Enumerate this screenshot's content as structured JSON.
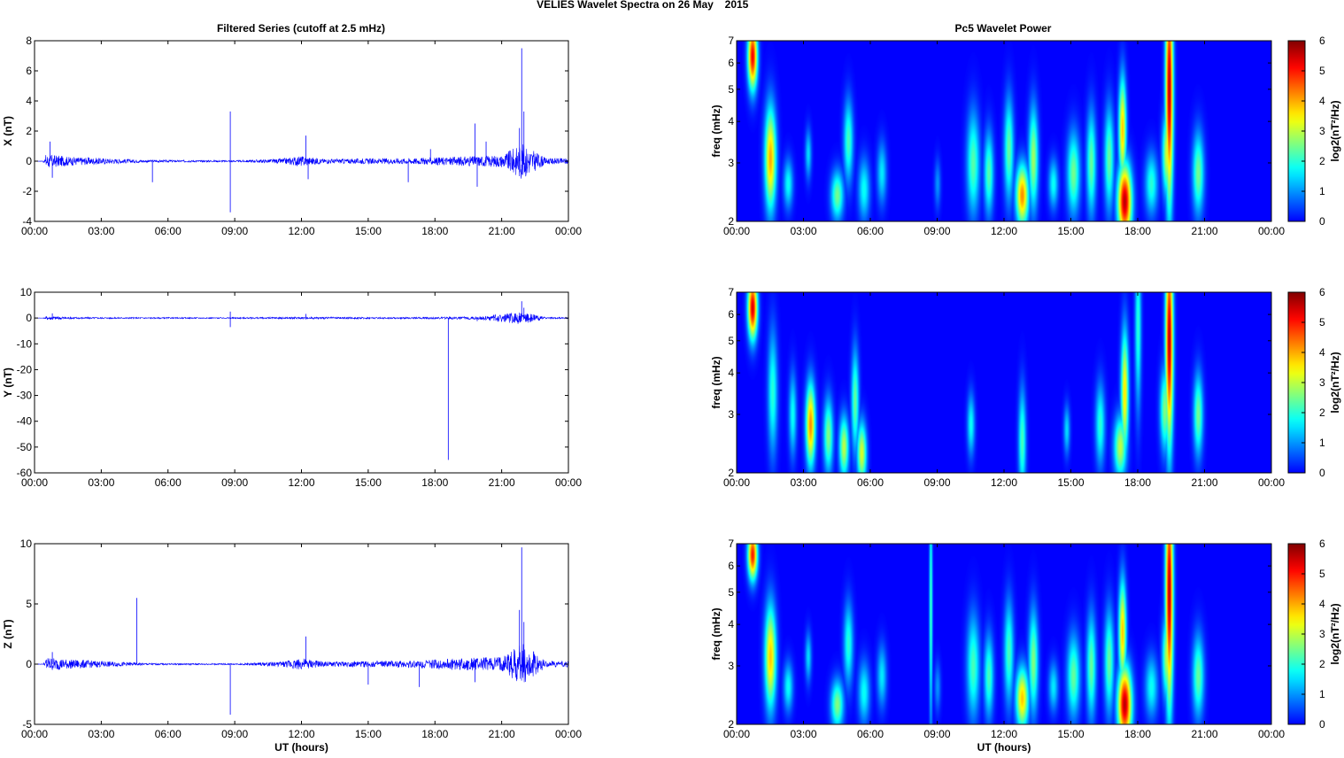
{
  "figure": {
    "title": "VELIES Wavelet Spectra on 26 May",
    "title_year": "2015",
    "left_title": "Filtered Series (cutoff at 2.5 mHz)",
    "right_title": "Pc5 Wavelet Power"
  },
  "chart_data": [
    {
      "type": "line",
      "panel": "X",
      "ylabel": "X (nT)",
      "xlabel": "",
      "ylim": [
        -4,
        8
      ],
      "yticks": [
        "8",
        "6",
        "4",
        "2",
        "0",
        "-2",
        "-4"
      ],
      "xticks": [
        "00:00",
        "03:00",
        "06:00",
        "09:00",
        "12:00",
        "15:00",
        "18:00",
        "21:00",
        "00:00"
      ],
      "xlim_hours": [
        0,
        24
      ],
      "series_color": "#0000ff",
      "baseline_noise": [
        [
          0.5,
          0.5
        ],
        [
          1.5,
          0.3
        ],
        [
          5,
          0.08
        ],
        [
          9,
          0.05
        ],
        [
          11,
          0.15
        ],
        [
          12,
          0.35
        ],
        [
          13,
          0.15
        ],
        [
          17,
          0.2
        ],
        [
          19,
          0.3
        ],
        [
          21,
          0.4
        ],
        [
          21.9,
          1.2
        ],
        [
          23,
          0.2
        ]
      ],
      "spikes": [
        [
          0.7,
          1.3
        ],
        [
          0.8,
          -1.1
        ],
        [
          5.3,
          -1.4
        ],
        [
          8.8,
          3.3
        ],
        [
          8.8,
          -3.4
        ],
        [
          12.2,
          1.7
        ],
        [
          12.3,
          -1.2
        ],
        [
          16.8,
          -1.4
        ],
        [
          17.8,
          0.8
        ],
        [
          19.8,
          2.5
        ],
        [
          19.9,
          -1.7
        ],
        [
          20.3,
          1.3
        ],
        [
          21.8,
          2.2
        ],
        [
          21.9,
          7.5
        ],
        [
          22.0,
          3.3
        ]
      ]
    },
    {
      "type": "line",
      "panel": "Y",
      "ylabel": "Y (nT)",
      "xlabel": "",
      "ylim": [
        -60,
        10
      ],
      "yticks": [
        "10",
        "0",
        "-10",
        "-20",
        "-30",
        "-40",
        "-50",
        "-60"
      ],
      "xticks": [
        "00:00",
        "03:00",
        "06:00",
        "09:00",
        "12:00",
        "15:00",
        "18:00",
        "21:00",
        "00:00"
      ],
      "xlim_hours": [
        0,
        24
      ],
      "series_color": "#0000ff",
      "baseline_noise": [
        [
          0.5,
          0.8
        ],
        [
          2,
          0.3
        ],
        [
          8,
          0.2
        ],
        [
          12,
          0.4
        ],
        [
          17,
          0.3
        ],
        [
          20,
          0.6
        ],
        [
          21.9,
          2.5
        ],
        [
          23,
          0.3
        ]
      ],
      "spikes": [
        [
          0.8,
          1.8
        ],
        [
          8.8,
          2.5
        ],
        [
          8.8,
          -3.5
        ],
        [
          12.2,
          1.6
        ],
        [
          18.6,
          -55
        ],
        [
          19.9,
          -1.2
        ],
        [
          21.9,
          6.5
        ],
        [
          22.0,
          4.0
        ]
      ]
    },
    {
      "type": "line",
      "panel": "Z",
      "ylabel": "Z (nT)",
      "xlabel": "UT (hours)",
      "ylim": [
        -5,
        10
      ],
      "yticks": [
        "10",
        "5",
        "0",
        "-5"
      ],
      "xticks": [
        "00:00",
        "03:00",
        "06:00",
        "09:00",
        "12:00",
        "15:00",
        "18:00",
        "21:00",
        "00:00"
      ],
      "xlim_hours": [
        0,
        24
      ],
      "series_color": "#0000ff",
      "baseline_noise": [
        [
          0.5,
          0.6
        ],
        [
          1.5,
          0.4
        ],
        [
          5,
          0.08
        ],
        [
          9,
          0.05
        ],
        [
          11,
          0.2
        ],
        [
          12,
          0.5
        ],
        [
          13,
          0.2
        ],
        [
          17,
          0.3
        ],
        [
          19,
          0.5
        ],
        [
          21,
          0.6
        ],
        [
          21.9,
          1.8
        ],
        [
          23,
          0.25
        ]
      ],
      "spikes": [
        [
          0.8,
          1.0
        ],
        [
          4.6,
          5.5
        ],
        [
          8.8,
          -4.2
        ],
        [
          12.2,
          2.3
        ],
        [
          15.0,
          -1.7
        ],
        [
          17.3,
          -1.9
        ],
        [
          19.8,
          -1.5
        ],
        [
          21.8,
          4.5
        ],
        [
          21.9,
          9.7
        ],
        [
          22.0,
          3.5
        ]
      ]
    },
    {
      "type": "heatmap",
      "panel": "X",
      "title": "Pc5 Wavelet Power",
      "ylabel": "freq (mHz)",
      "xlabel": "",
      "yscale": "log",
      "ylim": [
        2,
        7
      ],
      "yticks": [
        "7",
        "6",
        "5",
        "4",
        "3",
        "2"
      ],
      "xticks": [
        "00:00",
        "03:00",
        "06:00",
        "09:00",
        "12:00",
        "15:00",
        "18:00",
        "21:00",
        "00:00"
      ],
      "colorbar_label": "log2(nT²/Hz)",
      "colorbar_ticks": [
        "6",
        "5",
        "4",
        "3",
        "2",
        "1",
        "0"
      ],
      "clim": [
        0,
        6
      ],
      "colormap": "jet",
      "blobs": [
        [
          0.7,
          6.3,
          5.2,
          0.15,
          0.16
        ],
        [
          1.5,
          3.1,
          4.0,
          0.18,
          0.25
        ],
        [
          2.3,
          2.6,
          1.8,
          0.15,
          0.12
        ],
        [
          3.2,
          3.2,
          1.5,
          0.1,
          0.12
        ],
        [
          4.5,
          2.4,
          2.5,
          0.2,
          0.12
        ],
        [
          5.0,
          3.5,
          2.2,
          0.15,
          0.2
        ],
        [
          5.7,
          2.5,
          1.8,
          0.18,
          0.15
        ],
        [
          6.5,
          2.8,
          1.6,
          0.15,
          0.15
        ],
        [
          9.0,
          2.6,
          1.0,
          0.1,
          0.12
        ],
        [
          10.6,
          3.0,
          2.3,
          0.2,
          0.25
        ],
        [
          11.3,
          2.8,
          2.3,
          0.15,
          0.2
        ],
        [
          12.2,
          3.3,
          2.4,
          0.15,
          0.25
        ],
        [
          12.8,
          2.4,
          4.2,
          0.2,
          0.15
        ],
        [
          13.3,
          3.1,
          2.8,
          0.15,
          0.25
        ],
        [
          14.2,
          2.6,
          1.8,
          0.15,
          0.12
        ],
        [
          15.1,
          2.8,
          2.5,
          0.2,
          0.2
        ],
        [
          15.9,
          3.0,
          2.4,
          0.15,
          0.25
        ],
        [
          16.7,
          3.1,
          2.4,
          0.15,
          0.25
        ],
        [
          17.4,
          2.3,
          5.6,
          0.22,
          0.18
        ],
        [
          17.3,
          3.8,
          3.8,
          0.12,
          0.25
        ],
        [
          18.6,
          2.6,
          2.0,
          0.2,
          0.15
        ],
        [
          19.3,
          3.2,
          3.2,
          0.15,
          0.2
        ],
        [
          19.4,
          5.0,
          5.6,
          0.12,
          0.55
        ],
        [
          20.7,
          2.8,
          2.5,
          0.18,
          0.2
        ]
      ]
    },
    {
      "type": "heatmap",
      "panel": "Y",
      "title": "",
      "ylabel": "freq (mHz)",
      "xlabel": "",
      "yscale": "log",
      "ylim": [
        2,
        7
      ],
      "yticks": [
        "7",
        "6",
        "5",
        "4",
        "3",
        "2"
      ],
      "xticks": [
        "00:00",
        "03:00",
        "06:00",
        "09:00",
        "12:00",
        "15:00",
        "18:00",
        "21:00",
        "00:00"
      ],
      "colorbar_label": "log2(nT²/Hz)",
      "colorbar_ticks": [
        "6",
        "5",
        "4",
        "3",
        "2",
        "1",
        "0"
      ],
      "clim": [
        0,
        6
      ],
      "colormap": "jet",
      "blobs": [
        [
          0.7,
          6.3,
          5.4,
          0.15,
          0.15
        ],
        [
          1.6,
          3.5,
          2.0,
          0.15,
          0.3
        ],
        [
          2.5,
          3.0,
          1.8,
          0.12,
          0.2
        ],
        [
          3.3,
          2.8,
          4.2,
          0.15,
          0.2
        ],
        [
          4.1,
          2.6,
          2.6,
          0.15,
          0.18
        ],
        [
          4.8,
          2.4,
          3.0,
          0.15,
          0.15
        ],
        [
          5.6,
          2.3,
          3.2,
          0.15,
          0.15
        ],
        [
          5.3,
          3.3,
          2.4,
          0.12,
          0.25
        ],
        [
          10.5,
          2.8,
          1.8,
          0.12,
          0.15
        ],
        [
          12.8,
          2.5,
          2.2,
          0.12,
          0.25
        ],
        [
          14.8,
          2.7,
          1.5,
          0.1,
          0.12
        ],
        [
          16.3,
          2.8,
          2.0,
          0.15,
          0.2
        ],
        [
          17.2,
          2.4,
          3.0,
          0.2,
          0.15
        ],
        [
          17.4,
          3.5,
          3.6,
          0.12,
          0.3
        ],
        [
          18.0,
          5.5,
          2.0,
          0.1,
          0.4
        ],
        [
          19.2,
          3.1,
          2.6,
          0.15,
          0.2
        ],
        [
          19.4,
          5.0,
          5.6,
          0.12,
          0.5
        ],
        [
          20.7,
          3.0,
          2.5,
          0.15,
          0.2
        ]
      ]
    },
    {
      "type": "heatmap",
      "panel": "Z",
      "title": "",
      "ylabel": "freq (mHz)",
      "xlabel": "UT (hours)",
      "yscale": "log",
      "ylim": [
        2,
        7
      ],
      "yticks": [
        "7",
        "6",
        "5",
        "4",
        "3",
        "2"
      ],
      "xticks": [
        "00:00",
        "03:00",
        "06:00",
        "09:00",
        "12:00",
        "15:00",
        "18:00",
        "21:00",
        "00:00"
      ],
      "colorbar_label": "log2(nT²/Hz)",
      "colorbar_ticks": [
        "6",
        "5",
        "4",
        "3",
        "2",
        "1",
        "0"
      ],
      "clim": [
        0,
        6
      ],
      "colormap": "jet",
      "blobs": [
        [
          0.7,
          6.5,
          5.0,
          0.15,
          0.12
        ],
        [
          1.5,
          3.2,
          3.8,
          0.18,
          0.25
        ],
        [
          2.3,
          2.6,
          1.8,
          0.15,
          0.12
        ],
        [
          3.2,
          3.2,
          1.5,
          0.1,
          0.12
        ],
        [
          4.5,
          2.3,
          2.6,
          0.2,
          0.12
        ],
        [
          5.0,
          3.5,
          2.0,
          0.15,
          0.2
        ],
        [
          5.7,
          2.5,
          1.8,
          0.18,
          0.15
        ],
        [
          6.5,
          2.8,
          1.6,
          0.15,
          0.15
        ],
        [
          8.7,
          4.5,
          2.2,
          0.05,
          0.6
        ],
        [
          9.0,
          2.6,
          1.0,
          0.1,
          0.12
        ],
        [
          10.6,
          3.0,
          2.2,
          0.2,
          0.25
        ],
        [
          11.3,
          2.8,
          2.2,
          0.15,
          0.2
        ],
        [
          12.2,
          3.3,
          2.2,
          0.15,
          0.25
        ],
        [
          12.8,
          2.4,
          3.8,
          0.2,
          0.15
        ],
        [
          13.3,
          3.1,
          2.6,
          0.15,
          0.25
        ],
        [
          14.2,
          2.6,
          1.6,
          0.15,
          0.12
        ],
        [
          15.1,
          2.8,
          2.4,
          0.2,
          0.2
        ],
        [
          15.9,
          3.0,
          2.4,
          0.15,
          0.25
        ],
        [
          16.7,
          3.1,
          2.4,
          0.15,
          0.25
        ],
        [
          17.4,
          2.3,
          5.6,
          0.22,
          0.18
        ],
        [
          17.3,
          3.8,
          3.8,
          0.12,
          0.25
        ],
        [
          18.6,
          2.6,
          1.8,
          0.2,
          0.15
        ],
        [
          19.3,
          3.2,
          3.0,
          0.15,
          0.2
        ],
        [
          19.4,
          5.0,
          5.6,
          0.12,
          0.55
        ],
        [
          20.7,
          2.8,
          2.4,
          0.18,
          0.2
        ]
      ]
    }
  ]
}
